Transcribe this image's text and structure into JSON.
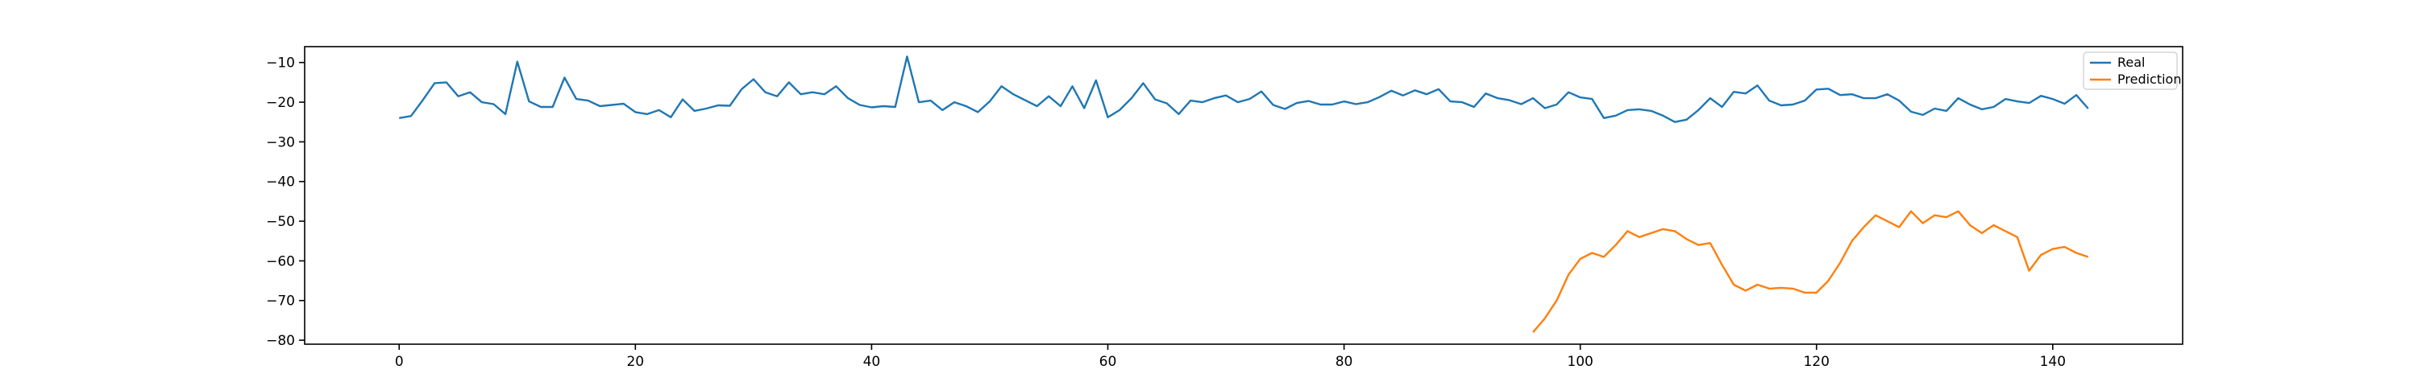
{
  "chart_data": {
    "type": "line",
    "title": "",
    "xlabel": "",
    "ylabel": "",
    "xlim": [
      -8,
      151
    ],
    "ylim": [
      -81,
      -6
    ],
    "xticks": [
      0,
      20,
      40,
      60,
      80,
      100,
      120,
      140
    ],
    "yticks": [
      -80,
      -70,
      -60,
      -50,
      -40,
      -30,
      -20,
      -10
    ],
    "grid": false,
    "legend_position": "top-right",
    "series": [
      {
        "name": "Real",
        "color": "#1f77b4",
        "x_start": 0,
        "values": [
          -24,
          -23.5,
          -19.5,
          -15.2,
          -15,
          -18.5,
          -17.5,
          -20,
          -20.5,
          -23,
          -9.8,
          -19.8,
          -21.2,
          -21.2,
          -13.8,
          -19.2,
          -19.6,
          -21,
          -20.7,
          -20.4,
          -22.5,
          -23,
          -22,
          -23.8,
          -19.3,
          -22.2,
          -21.6,
          -20.8,
          -20.9,
          -16.7,
          -14.2,
          -17.5,
          -18.5,
          -15,
          -18,
          -17.5,
          -18,
          -16,
          -19,
          -20.7,
          -21.3,
          -21,
          -21.2,
          -8.5,
          -20,
          -19.6,
          -22,
          -20,
          -21,
          -22.5,
          -19.8,
          -16,
          -18,
          -19.5,
          -21,
          -18.5,
          -21,
          -16,
          -21.5,
          -14.5,
          -23.8,
          -22,
          -19,
          -15.2,
          -19.3,
          -20.3,
          -23,
          -19.6,
          -20,
          -19,
          -18.3,
          -20,
          -19.2,
          -17.3,
          -20.7,
          -21.7,
          -20.2,
          -19.7,
          -20.6,
          -20.6,
          -19.8,
          -20.5,
          -20,
          -18.7,
          -17.1,
          -18.3,
          -17,
          -18,
          -16.7,
          -19.8,
          -20,
          -21.2,
          -17.8,
          -19,
          -19.5,
          -20.5,
          -19,
          -21.5,
          -20.6,
          -17.5,
          -18.8,
          -19.2,
          -24,
          -23.4,
          -22,
          -21.8,
          -22.2,
          -23.4,
          -25,
          -24.4,
          -22,
          -19,
          -21.2,
          -17.4,
          -17.8,
          -15.8,
          -19.6,
          -20.8,
          -20.6,
          -19.6,
          -16.8,
          -16.6,
          -18.2,
          -18,
          -19,
          -19,
          -18,
          -19.6,
          -22.4,
          -23.2,
          -21.6,
          -22.2,
          -19,
          -20.6,
          -21.8,
          -21.2,
          -19.2,
          -19.8,
          -20.2,
          -18.4,
          -19.2,
          -20.4,
          -18.2,
          -21.6
        ]
      },
      {
        "name": "Prediction",
        "color": "#ff7f0e",
        "x_start": 96,
        "values": [
          -78,
          -74.5,
          -70,
          -63.5,
          -59.5,
          -58,
          -59,
          -56,
          -52.5,
          -54,
          -53,
          -52,
          -52.5,
          -54.5,
          -56,
          -55.5,
          -61,
          -66,
          -67.5,
          -66,
          -67,
          -66.8,
          -67,
          -68,
          -68,
          -65,
          -60.5,
          -55,
          -51.5,
          -48.5,
          -50,
          -51.5,
          -47.5,
          -50.5,
          -48.5,
          -49,
          -47.5,
          -51,
          -53,
          -51,
          -52.5,
          -54,
          -62.5,
          -58.5,
          -57,
          -56.5,
          -58,
          -59
        ]
      }
    ]
  }
}
